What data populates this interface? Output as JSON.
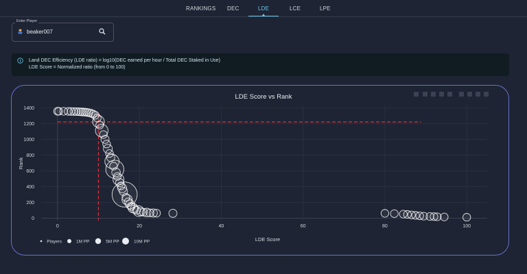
{
  "nav": {
    "tabs": [
      {
        "label": "RANKINGS",
        "active": false
      },
      {
        "label": "DEC",
        "active": false
      },
      {
        "label": "LDE",
        "active": true
      },
      {
        "label": "LCE",
        "active": false
      },
      {
        "label": "LPE",
        "active": false
      }
    ]
  },
  "player_search": {
    "legend": "Enter Player",
    "value": "beaker007",
    "avatar_icon": "player-avatar-icon",
    "search_icon": "search-icon"
  },
  "info": {
    "icon": "info-icon",
    "line1": "Land DEC Efficiency (LDE ratio) = log10(DEC earned per hour / Total DEC Staked in Use)",
    "line2": "LDE Score = Normalized ratio (from 0 to 100)"
  },
  "colors": {
    "accent": "#66c8ee",
    "card_border": "#6770c9",
    "reference_line": "#e0303a",
    "marker": "#ffffff"
  },
  "chart_data": {
    "type": "scatter",
    "title": "LDE Score vs Rank",
    "xlabel": "LDE Score",
    "ylabel": "Rank",
    "xlim": [
      -4,
      105
    ],
    "ylim": [
      -30,
      1420
    ],
    "x_ticks": [
      0,
      20,
      40,
      60,
      80,
      100
    ],
    "y_ticks": [
      0,
      200,
      400,
      600,
      800,
      1000,
      1200,
      1400
    ],
    "reference": {
      "x": 10,
      "y": 1220
    },
    "legend_position": "bottom-left",
    "legend": [
      {
        "label": "Players",
        "size": "dot"
      },
      {
        "label": "1M PP",
        "size": "small"
      },
      {
        "label": "5M PP",
        "size": "medium"
      },
      {
        "label": "10M PP",
        "size": "large"
      }
    ],
    "points": [
      {
        "x": 0,
        "y": 1355,
        "pp": 0.5
      },
      {
        "x": 0.3,
        "y": 1355,
        "pp": 0.5
      },
      {
        "x": 1.5,
        "y": 1355,
        "pp": 0.5
      },
      {
        "x": 2.6,
        "y": 1354,
        "pp": 0.5
      },
      {
        "x": 3.3,
        "y": 1353,
        "pp": 0.5
      },
      {
        "x": 4.0,
        "y": 1352,
        "pp": 0.5
      },
      {
        "x": 4.6,
        "y": 1351,
        "pp": 0.5
      },
      {
        "x": 5.2,
        "y": 1350,
        "pp": 0.5
      },
      {
        "x": 5.7,
        "y": 1348,
        "pp": 0.5
      },
      {
        "x": 6.2,
        "y": 1346,
        "pp": 0.5
      },
      {
        "x": 6.7,
        "y": 1344,
        "pp": 0.5
      },
      {
        "x": 7.2,
        "y": 1341,
        "pp": 0.5
      },
      {
        "x": 7.7,
        "y": 1337,
        "pp": 0.5
      },
      {
        "x": 8.2,
        "y": 1330,
        "pp": 0.5
      },
      {
        "x": 8.7,
        "y": 1320,
        "pp": 0.5
      },
      {
        "x": 9.2,
        "y": 1305,
        "pp": 0.5
      },
      {
        "x": 9.7,
        "y": 1270,
        "pp": 0.5
      },
      {
        "x": 10.0,
        "y": 1225,
        "pp": 1.8
      },
      {
        "x": 10.3,
        "y": 1180,
        "pp": 0.5
      },
      {
        "x": 10.8,
        "y": 1110,
        "pp": 2.2
      },
      {
        "x": 11.2,
        "y": 1060,
        "pp": 0.5
      },
      {
        "x": 11.6,
        "y": 1000,
        "pp": 0.6
      },
      {
        "x": 12.0,
        "y": 940,
        "pp": 0.5
      },
      {
        "x": 12.3,
        "y": 880,
        "pp": 0.8
      },
      {
        "x": 12.7,
        "y": 820,
        "pp": 0.5
      },
      {
        "x": 13.0,
        "y": 770,
        "pp": 0.6
      },
      {
        "x": 13.3,
        "y": 720,
        "pp": 3.0
      },
      {
        "x": 13.7,
        "y": 660,
        "pp": 0.5
      },
      {
        "x": 14.0,
        "y": 620,
        "pp": 5.5
      },
      {
        "x": 14.3,
        "y": 580,
        "pp": 0.7
      },
      {
        "x": 14.6,
        "y": 530,
        "pp": 0.5
      },
      {
        "x": 14.9,
        "y": 490,
        "pp": 1.5
      },
      {
        "x": 15.2,
        "y": 450,
        "pp": 0.6
      },
      {
        "x": 15.5,
        "y": 410,
        "pp": 0.5
      },
      {
        "x": 15.8,
        "y": 380,
        "pp": 0.8
      },
      {
        "x": 16.1,
        "y": 340,
        "pp": 0.6
      },
      {
        "x": 16.4,
        "y": 300,
        "pp": 12.0
      },
      {
        "x": 16.7,
        "y": 265,
        "pp": 0.5
      },
      {
        "x": 17.0,
        "y": 235,
        "pp": 1.2
      },
      {
        "x": 17.3,
        "y": 205,
        "pp": 0.6
      },
      {
        "x": 17.7,
        "y": 175,
        "pp": 0.8
      },
      {
        "x": 18.0,
        "y": 150,
        "pp": 0.5
      },
      {
        "x": 18.4,
        "y": 130,
        "pp": 1.0
      },
      {
        "x": 18.8,
        "y": 115,
        "pp": 0.6
      },
      {
        "x": 19.3,
        "y": 100,
        "pp": 0.5
      },
      {
        "x": 19.8,
        "y": 90,
        "pp": 1.4
      },
      {
        "x": 20.4,
        "y": 82,
        "pp": 0.6
      },
      {
        "x": 21.0,
        "y": 76,
        "pp": 0.5
      },
      {
        "x": 21.8,
        "y": 72,
        "pp": 0.7
      },
      {
        "x": 22.6,
        "y": 68,
        "pp": 0.5
      },
      {
        "x": 23.4,
        "y": 66,
        "pp": 0.6
      },
      {
        "x": 24.2,
        "y": 64,
        "pp": 0.5
      },
      {
        "x": 28.2,
        "y": 62,
        "pp": 0.6
      },
      {
        "x": 80.0,
        "y": 62,
        "pp": 0.5
      },
      {
        "x": 82.3,
        "y": 58,
        "pp": 0.5
      },
      {
        "x": 84.5,
        "y": 52,
        "pp": 0.5
      },
      {
        "x": 85.5,
        "y": 48,
        "pp": 0.5
      },
      {
        "x": 86.5,
        "y": 42,
        "pp": 0.5
      },
      {
        "x": 87.5,
        "y": 36,
        "pp": 0.5
      },
      {
        "x": 88.5,
        "y": 30,
        "pp": 0.5
      },
      {
        "x": 89.5,
        "y": 26,
        "pp": 0.5
      },
      {
        "x": 91.0,
        "y": 22,
        "pp": 0.5
      },
      {
        "x": 92.0,
        "y": 20,
        "pp": 0.5
      },
      {
        "x": 92.8,
        "y": 18,
        "pp": 0.5
      },
      {
        "x": 94.5,
        "y": 16,
        "pp": 0.5
      },
      {
        "x": 100.0,
        "y": 12,
        "pp": 0.5
      }
    ]
  }
}
